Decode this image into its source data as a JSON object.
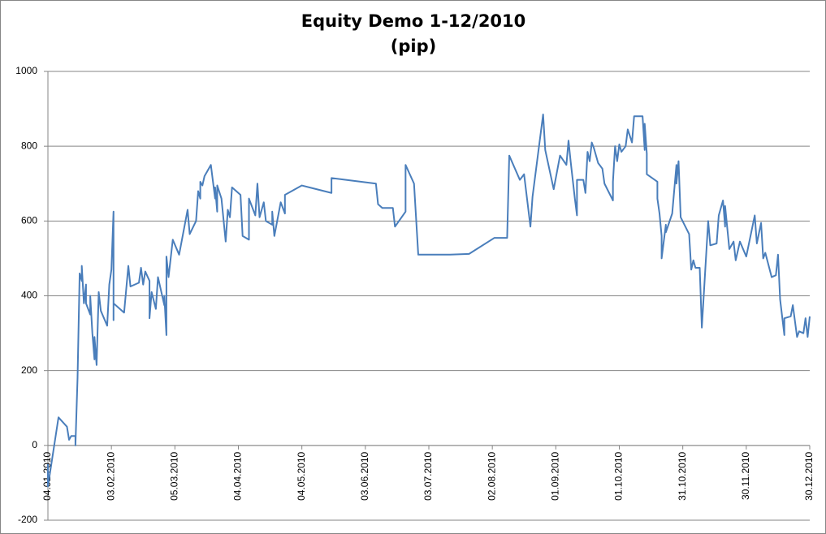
{
  "chart_data": {
    "type": "line",
    "title": "Equity Demo 1-12/2010",
    "subtitle": "(pip)",
    "x": [
      "2010-01-04",
      "2010-01-04",
      "2010-01-09",
      "2010-01-13",
      "2010-01-14",
      "2010-01-15",
      "2010-01-17",
      "2010-01-17",
      "2010-01-18",
      "2010-01-19",
      "2010-01-20",
      "2010-01-20",
      "2010-01-21",
      "2010-01-22",
      "2010-01-22",
      "2010-01-24",
      "2010-01-24",
      "2010-01-25",
      "2010-01-26",
      "2010-01-26",
      "2010-01-27",
      "2010-01-28",
      "2010-01-29",
      "2010-02-01",
      "2010-02-02",
      "2010-02-03",
      "2010-02-04",
      "2010-02-04",
      "2010-02-04",
      "2010-02-09",
      "2010-02-11",
      "2010-02-12",
      "2010-02-16",
      "2010-02-17",
      "2010-02-18",
      "2010-02-19",
      "2010-02-21",
      "2010-02-21",
      "2010-02-22",
      "2010-02-24",
      "2010-02-25",
      "2010-02-28",
      "2010-02-28",
      "2010-03-01",
      "2010-03-01",
      "2010-03-02",
      "2010-03-04",
      "2010-03-07",
      "2010-03-11",
      "2010-03-12",
      "2010-03-15",
      "2010-03-16",
      "2010-03-17",
      "2010-03-17",
      "2010-03-18",
      "2010-03-19",
      "2010-03-22",
      "2010-03-24",
      "2010-03-24",
      "2010-03-25",
      "2010-03-25",
      "2010-03-27",
      "2010-03-29",
      "2010-03-30",
      "2010-03-31",
      "2010-04-01",
      "2010-04-05",
      "2010-04-06",
      "2010-04-09",
      "2010-04-09",
      "2010-04-12",
      "2010-04-13",
      "2010-04-14",
      "2010-04-16",
      "2010-04-17",
      "2010-04-20",
      "2010-04-20",
      "2010-04-21",
      "2010-04-24",
      "2010-04-26",
      "2010-04-26",
      "2010-05-04",
      "2010-05-18",
      "2010-05-18",
      "2010-06-08",
      "2010-06-09",
      "2010-06-11",
      "2010-06-16",
      "2010-06-17",
      "2010-06-22",
      "2010-06-22",
      "2010-06-24",
      "2010-06-26",
      "2010-06-28",
      "2010-07-13",
      "2010-07-22",
      "2010-08-03",
      "2010-08-09",
      "2010-08-10",
      "2010-08-15",
      "2010-08-17",
      "2010-08-20",
      "2010-08-21",
      "2010-08-26",
      "2010-08-27",
      "2010-08-31",
      "2010-09-03",
      "2010-09-06",
      "2010-09-07",
      "2010-09-08",
      "2010-09-10",
      "2010-09-11",
      "2010-09-11",
      "2010-09-14",
      "2010-09-15",
      "2010-09-16",
      "2010-09-17",
      "2010-09-18",
      "2010-09-19",
      "2010-09-21",
      "2010-09-23",
      "2010-09-24",
      "2010-09-28",
      "2010-09-28",
      "2010-09-29",
      "2010-09-30",
      "2010-10-01",
      "2010-10-02",
      "2010-10-04",
      "2010-10-05",
      "2010-10-07",
      "2010-10-08",
      "2010-10-12",
      "2010-10-13",
      "2010-10-13",
      "2010-10-14",
      "2010-10-14",
      "2010-10-19",
      "2010-10-19",
      "2010-10-20",
      "2010-10-21",
      "2010-10-21",
      "2010-10-23",
      "2010-10-23",
      "2010-10-26",
      "2010-10-28",
      "2010-10-28",
      "2010-10-29",
      "2010-10-30",
      "2010-11-03",
      "2010-11-04",
      "2010-11-05",
      "2010-11-06",
      "2010-11-08",
      "2010-11-09",
      "2010-11-12",
      "2010-11-13",
      "2010-11-16",
      "2010-11-17",
      "2010-11-19",
      "2010-11-20",
      "2010-11-20",
      "2010-11-22",
      "2010-11-24",
      "2010-11-25",
      "2010-11-27",
      "2010-11-30",
      "2010-12-04",
      "2010-12-05",
      "2010-12-07",
      "2010-12-08",
      "2010-12-09",
      "2010-12-12",
      "2010-12-14",
      "2010-12-15",
      "2010-12-16",
      "2010-12-18",
      "2010-12-18",
      "2010-12-21",
      "2010-12-22",
      "2010-12-24",
      "2010-12-25",
      "2010-12-27",
      "2010-12-28",
      "2010-12-29",
      "2010-12-30"
    ],
    "series": [
      {
        "color": "#4a7ebb",
        "values": [
          -50,
          -110,
          75,
          50,
          15,
          25,
          25,
          0,
          180,
          460,
          440,
          480,
          380,
          430,
          380,
          350,
          400,
          300,
          230,
          290,
          215,
          410,
          360,
          320,
          430,
          470,
          625,
          335,
          380,
          355,
          480,
          425,
          435,
          475,
          430,
          465,
          440,
          340,
          410,
          365,
          450,
          375,
          400,
          295,
          505,
          450,
          550,
          510,
          630,
          565,
          600,
          680,
          660,
          705,
          695,
          720,
          750,
          660,
          690,
          625,
          695,
          660,
          545,
          630,
          610,
          690,
          670,
          560,
          550,
          660,
          615,
          700,
          610,
          650,
          600,
          590,
          625,
          560,
          650,
          620,
          670,
          695,
          675,
          715,
          700,
          645,
          635,
          635,
          585,
          625,
          750,
          725,
          700,
          510,
          510,
          512,
          555,
          555,
          775,
          710,
          725,
          585,
          665,
          885,
          790,
          685,
          775,
          750,
          815,
          760,
          660,
          615,
          710,
          710,
          675,
          785,
          760,
          810,
          795,
          755,
          740,
          700,
          655,
          705,
          800,
          760,
          805,
          785,
          800,
          845,
          810,
          880,
          880,
          790,
          860,
          780,
          725,
          705,
          660,
          620,
          560,
          500,
          590,
          570,
          620,
          750,
          700,
          760,
          610,
          565,
          470,
          495,
          475,
          475,
          315,
          600,
          535,
          540,
          615,
          655,
          585,
          640,
          525,
          545,
          495,
          545,
          505,
          615,
          540,
          595,
          500,
          515,
          450,
          455,
          510,
          390,
          295,
          340,
          345,
          375,
          290,
          305,
          300,
          340,
          290,
          345
        ]
      }
    ],
    "xlim": [
      "2010-01-04",
      "2010-12-30"
    ],
    "xticks": [
      {
        "value": "2010-01-04",
        "label": "04.01.2010"
      },
      {
        "value": "2010-02-03",
        "label": "03.02.2010"
      },
      {
        "value": "2010-03-05",
        "label": "05.03.2010"
      },
      {
        "value": "2010-04-04",
        "label": "04.04.2010"
      },
      {
        "value": "2010-05-04",
        "label": "04.05.2010"
      },
      {
        "value": "2010-06-03",
        "label": "03.06.2010"
      },
      {
        "value": "2010-07-03",
        "label": "03.07.2010"
      },
      {
        "value": "2010-08-02",
        "label": "02.08.2010"
      },
      {
        "value": "2010-09-01",
        "label": "01.09.2010"
      },
      {
        "value": "2010-10-01",
        "label": "01.10.2010"
      },
      {
        "value": "2010-10-31",
        "label": "31.10.2010"
      },
      {
        "value": "2010-11-30",
        "label": "30.11.2010"
      },
      {
        "value": "2010-12-30",
        "label": "30.12.2010"
      }
    ],
    "ylim": [
      -200,
      1000
    ],
    "yticks": [
      -200,
      0,
      200,
      400,
      600,
      800,
      1000
    ],
    "grid": true
  }
}
